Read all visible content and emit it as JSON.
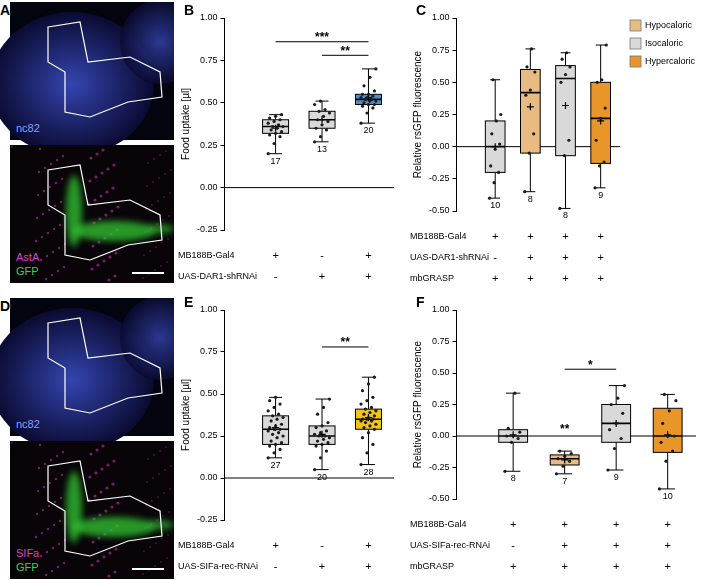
{
  "images": [
    {
      "panel": "A",
      "upper": [
        {
          "text": "nc82",
          "color": "#8f9ef5"
        }
      ],
      "lower": [
        {
          "text": "AstA",
          "color": "#d640c8"
        },
        {
          "text": "GFP",
          "color": "#3fd13f"
        }
      ]
    },
    {
      "panel": "D",
      "upper": [
        {
          "text": "nc82",
          "color": "#8f9ef5"
        }
      ],
      "lower": [
        {
          "text": "SIFa",
          "color": "#d640c8"
        },
        {
          "text": "GFP",
          "color": "#3fd13f"
        }
      ]
    }
  ],
  "chart_data": [
    {
      "type": "box",
      "panel": "B",
      "ylabel": "Food uptake [µl]",
      "ylim": [
        -0.25,
        1.0
      ],
      "yticks": [
        -0.25,
        {
          "value": 0,
          "label": "0.00"
        },
        0.25,
        {
          "value": 0.5,
          "label": "0.50"
        },
        0.75,
        {
          "value": 1.0,
          "label": "1.00"
        }
      ],
      "reference_line": 0,
      "groups": [
        {
          "color": "#d9d9d9",
          "min": 0.2,
          "q1": 0.32,
          "median": 0.36,
          "q3": 0.4,
          "max": 0.43,
          "mean": 0.35,
          "n": "17",
          "points": [
            0.2,
            0.26,
            0.3,
            0.31,
            0.32,
            0.33,
            0.34,
            0.35,
            0.36,
            0.36,
            0.37,
            0.38,
            0.39,
            0.4,
            0.41,
            0.42,
            0.43
          ]
        },
        {
          "color": "#d9d9d9",
          "min": 0.27,
          "q1": 0.35,
          "median": 0.4,
          "q3": 0.45,
          "max": 0.51,
          "mean": 0.4,
          "n": "13",
          "points": [
            0.27,
            0.3,
            0.34,
            0.35,
            0.37,
            0.39,
            0.4,
            0.42,
            0.44,
            0.45,
            0.46,
            0.49,
            0.51
          ]
        },
        {
          "color": "#4a8fc9",
          "min": 0.38,
          "q1": 0.49,
          "median": 0.52,
          "q3": 0.55,
          "max": 0.7,
          "mean": 0.53,
          "n": "20",
          "points": [
            0.38,
            0.44,
            0.47,
            0.48,
            0.49,
            0.49,
            0.5,
            0.51,
            0.51,
            0.52,
            0.52,
            0.53,
            0.53,
            0.54,
            0.55,
            0.55,
            0.57,
            0.6,
            0.65,
            0.7
          ]
        }
      ],
      "significance": [
        {
          "from": 0,
          "to": 2,
          "y": 0.86,
          "label": "***"
        },
        {
          "from": 1,
          "to": 2,
          "y": 0.78,
          "label": "**"
        }
      ],
      "genotype": [
        {
          "label": "MB188B-Gal4",
          "marks": [
            "+",
            "-",
            "+"
          ]
        },
        {
          "label": "UAS-DAR1-shRNAi",
          "marks": [
            "-",
            "+",
            "+"
          ]
        }
      ]
    },
    {
      "type": "box",
      "panel": "C",
      "ylabel": "Relative rsGFP fluorescence",
      "ylim": [
        -0.5,
        1.0
      ],
      "yticks": [
        {
          "value": -0.5,
          "label": "-0.50"
        },
        -0.25,
        {
          "value": 0,
          "label": "0.00"
        },
        0.25,
        {
          "value": 0.5,
          "label": "0.50"
        },
        0.75,
        {
          "value": 1.0,
          "label": "1.00"
        }
      ],
      "reference_line": 0,
      "legend": "right",
      "series": [
        {
          "name": "Hypocaloric",
          "color": "#e8bb82"
        },
        {
          "name": "Isocaloric",
          "color": "#d9d9d9"
        },
        {
          "name": "Hypercaloric",
          "color": "#e8952a"
        }
      ],
      "groups": [
        {
          "color": "#d9d9d9",
          "min": -0.4,
          "q1": -0.2,
          "median": 0.0,
          "q3": 0.2,
          "max": 0.52,
          "mean": 0.0,
          "n": "10",
          "points": [
            -0.4,
            -0.28,
            -0.2,
            -0.15,
            -0.02,
            0.02,
            0.1,
            0.2,
            0.25,
            0.52
          ]
        },
        {
          "color": "#e8bb82",
          "min": -0.35,
          "q1": -0.05,
          "median": 0.42,
          "q3": 0.6,
          "max": 0.76,
          "mean": 0.31,
          "n": "8",
          "points": [
            -0.35,
            -0.05,
            0.1,
            0.4,
            0.44,
            0.58,
            0.62,
            0.76
          ]
        },
        {
          "color": "#d9d9d9",
          "min": -0.48,
          "q1": -0.07,
          "median": 0.53,
          "q3": 0.63,
          "max": 0.73,
          "mean": 0.32,
          "n": "8",
          "points": [
            -0.48,
            -0.07,
            0.05,
            0.5,
            0.56,
            0.62,
            0.68,
            0.73
          ]
        },
        {
          "color": "#e8952a",
          "min": -0.32,
          "q1": -0.13,
          "median": 0.22,
          "q3": 0.5,
          "max": 0.79,
          "mean": 0.2,
          "n": "9",
          "points": [
            -0.32,
            -0.15,
            -0.12,
            0.05,
            0.22,
            0.3,
            0.5,
            0.52,
            0.79
          ]
        }
      ],
      "significance": [],
      "genotype": [
        {
          "label": "MB188B-Gal4",
          "marks": [
            "+",
            "+",
            "+",
            "+"
          ]
        },
        {
          "label": "UAS-DAR1-shRNAi",
          "marks": [
            "-",
            "+",
            "+",
            "+"
          ]
        },
        {
          "label": "mbGRASP",
          "marks": [
            "+",
            "+",
            "+",
            "+"
          ]
        }
      ]
    },
    {
      "type": "box",
      "panel": "E",
      "ylabel": "Food uptake [µl]",
      "ylim": [
        -0.25,
        1.0
      ],
      "yticks": [
        -0.25,
        {
          "value": 0,
          "label": "0.00"
        },
        0.25,
        {
          "value": 0.5,
          "label": "0.50"
        },
        0.75,
        {
          "value": 1.0,
          "label": "1.00"
        }
      ],
      "reference_line": 0,
      "groups": [
        {
          "color": "#d9d9d9",
          "min": 0.12,
          "q1": 0.2,
          "median": 0.29,
          "q3": 0.37,
          "max": 0.48,
          "mean": 0.3,
          "n": "27",
          "points": [
            0.12,
            0.15,
            0.17,
            0.19,
            0.2,
            0.21,
            0.22,
            0.24,
            0.25,
            0.26,
            0.27,
            0.28,
            0.29,
            0.29,
            0.3,
            0.31,
            0.32,
            0.34,
            0.35,
            0.36,
            0.37,
            0.38,
            0.4,
            0.42,
            0.44,
            0.46,
            0.48
          ]
        },
        {
          "color": "#d9d9d9",
          "min": 0.05,
          "q1": 0.2,
          "median": 0.25,
          "q3": 0.31,
          "max": 0.47,
          "mean": 0.26,
          "n": "20",
          "points": [
            0.05,
            0.12,
            0.16,
            0.19,
            0.2,
            0.21,
            0.22,
            0.23,
            0.24,
            0.25,
            0.25,
            0.26,
            0.27,
            0.28,
            0.3,
            0.31,
            0.33,
            0.38,
            0.42,
            0.47
          ]
        },
        {
          "color": "#f2c318",
          "min": 0.08,
          "q1": 0.29,
          "median": 0.35,
          "q3": 0.41,
          "max": 0.6,
          "mean": 0.36,
          "n": "28",
          "points": [
            0.08,
            0.15,
            0.2,
            0.24,
            0.27,
            0.29,
            0.3,
            0.31,
            0.32,
            0.33,
            0.34,
            0.34,
            0.35,
            0.35,
            0.35,
            0.36,
            0.37,
            0.38,
            0.39,
            0.4,
            0.41,
            0.42,
            0.44,
            0.46,
            0.48,
            0.52,
            0.56,
            0.6
          ]
        }
      ],
      "significance": [
        {
          "from": 1,
          "to": 2,
          "y": 0.78,
          "label": "**"
        }
      ],
      "genotype": [
        {
          "label": "MB188B-Gal4",
          "marks": [
            "+",
            "-",
            "+"
          ]
        },
        {
          "label": "UAS-SIFa-rec-RNAi",
          "marks": [
            "-",
            "+",
            "+"
          ]
        }
      ]
    },
    {
      "type": "box",
      "panel": "F",
      "ylabel": "Relative rsGFP fluorescence",
      "ylim": [
        -0.5,
        1.0
      ],
      "yticks": [
        {
          "value": -0.5,
          "label": "-0.50"
        },
        -0.25,
        {
          "value": 0,
          "label": "0.00"
        },
        0.25,
        {
          "value": 0.5,
          "label": "0.50"
        },
        0.75,
        {
          "value": 1.0,
          "label": "1.00"
        }
      ],
      "reference_line": 0,
      "groups": [
        {
          "color": "#d9d9d9",
          "min": -0.28,
          "q1": -0.05,
          "median": 0.0,
          "q3": 0.05,
          "max": 0.34,
          "mean": 0.01,
          "n": "8",
          "points": [
            -0.28,
            -0.05,
            -0.02,
            0.0,
            0.0,
            0.03,
            0.06,
            0.34
          ]
        },
        {
          "color": "#e8bb82",
          "min": -0.3,
          "q1": -0.23,
          "median": -0.18,
          "q3": -0.15,
          "max": -0.12,
          "mean": -0.19,
          "n": "7",
          "points": [
            -0.3,
            -0.24,
            -0.2,
            -0.18,
            -0.16,
            -0.14,
            -0.12
          ]
        },
        {
          "color": "#d9d9d9",
          "min": -0.27,
          "q1": -0.05,
          "median": 0.1,
          "q3": 0.25,
          "max": 0.4,
          "mean": 0.1,
          "n": "9",
          "points": [
            -0.27,
            -0.1,
            -0.02,
            0.05,
            0.1,
            0.18,
            0.25,
            0.3,
            0.4
          ]
        },
        {
          "color": "#e8952a",
          "min": -0.42,
          "q1": -0.13,
          "median": 0.0,
          "q3": 0.22,
          "max": 0.33,
          "mean": 0.01,
          "n": "10",
          "points": [
            -0.42,
            -0.2,
            -0.12,
            -0.05,
            0.0,
            0.0,
            0.1,
            0.2,
            0.28,
            0.33
          ]
        }
      ],
      "significance": [
        {
          "from": 1,
          "to": 1,
          "y": 0.02,
          "label": "**"
        },
        {
          "from": 1,
          "to": 2,
          "y": 0.53,
          "label": "*"
        }
      ],
      "genotype": [
        {
          "label": "MB188B-Gal4",
          "marks": [
            "+",
            "+",
            "+",
            "+"
          ]
        },
        {
          "label": "UAS-SIFa-rec-RNAi",
          "marks": [
            "-",
            "+",
            "+",
            "+"
          ]
        },
        {
          "label": "mbGRASP",
          "marks": [
            "+",
            "+",
            "+",
            "+"
          ]
        }
      ]
    }
  ]
}
